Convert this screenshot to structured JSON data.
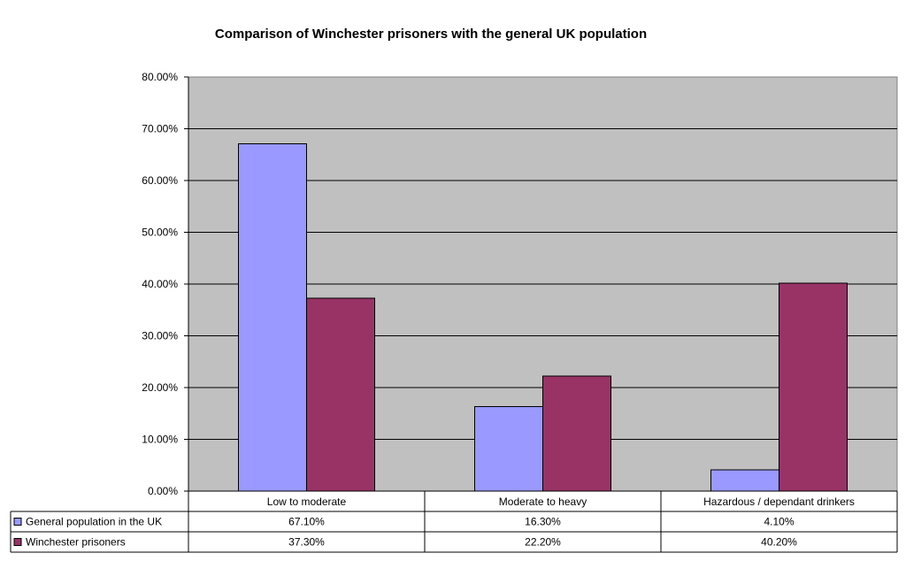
{
  "chart_data": {
    "type": "bar",
    "title": "Comparison of Winchester prisoners with the general UK population",
    "categories": [
      "Low to moderate",
      "Moderate to heavy",
      "Hazardous / dependant drinkers"
    ],
    "series": [
      {
        "name": "General population in the UK",
        "values": [
          67.1,
          16.3,
          4.1
        ],
        "labels": [
          "67.10%",
          "16.30%",
          "4.10%"
        ],
        "color": "#9999ff"
      },
      {
        "name": "Winchester prisoners",
        "values": [
          37.3,
          22.2,
          40.2
        ],
        "labels": [
          "37.30%",
          "22.20%",
          "40.20%"
        ],
        "color": "#993366"
      }
    ],
    "y_ticks": [
      "0.00%",
      "10.00%",
      "20.00%",
      "30.00%",
      "40.00%",
      "50.00%",
      "60.00%",
      "70.00%",
      "80.00%"
    ],
    "ylim": [
      0,
      80
    ],
    "grid": true,
    "plot_background": "#c0c0c0",
    "legend": "data-table"
  }
}
